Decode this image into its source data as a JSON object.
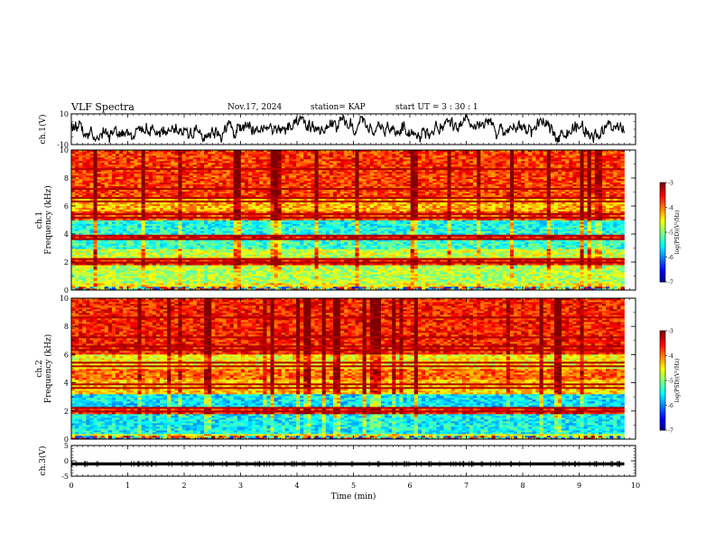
{
  "header": {
    "title": "VLF Spectra",
    "date": "Nov.17, 2024",
    "station": "station= KAP",
    "start": "start  UT  =   3 : 30 : 1"
  },
  "chart_data": [
    {
      "type": "line",
      "panel": "waveform-ch1",
      "ylabel": "ch.1(V)",
      "ylim": [
        -10,
        10
      ],
      "yticks": [
        10,
        -10
      ],
      "x_range_min": [
        0,
        9.8
      ],
      "description_values": "noisy waveform fluctuating roughly between -8 and +8 V",
      "sample_envelope": [
        2,
        -3,
        5,
        -2,
        4,
        -5,
        3,
        -1,
        6,
        -4,
        2,
        0,
        -3,
        4,
        -6,
        3,
        1,
        -2,
        5,
        -3
      ]
    },
    {
      "type": "heatmap",
      "panel": "spectrogram-ch1",
      "ylabel": "ch.1\nFrequency (kHz)",
      "ylim": [
        0,
        10
      ],
      "yticks": [
        0,
        2,
        4,
        6,
        8,
        10
      ],
      "xlim": [
        0,
        10
      ],
      "data_extent_min": [
        0,
        9.8
      ],
      "colorbar": {
        "label": "log(PSD)(V²/Hz)",
        "range": [
          -7,
          -3
        ],
        "ticks": [
          -3,
          -4,
          -5,
          -6,
          -7
        ]
      },
      "band_profile": [
        {
          "f": [
            0,
            0.5
          ],
          "level": -4.5
        },
        {
          "f": [
            0.5,
            1.8
          ],
          "level": -4.8
        },
        {
          "f": [
            1.8,
            2.2
          ],
          "level": -3.6
        },
        {
          "f": [
            2.2,
            3.0
          ],
          "level": -4.7
        },
        {
          "f": [
            3.0,
            3.6
          ],
          "level": -5.3
        },
        {
          "f": [
            3.6,
            4.0
          ],
          "level": -3.5
        },
        {
          "f": [
            4.0,
            5.0
          ],
          "level": -5.4
        },
        {
          "f": [
            5.0,
            5.6
          ],
          "level": -3.8
        },
        {
          "f": [
            5.6,
            6.5
          ],
          "level": -4.2
        },
        {
          "f": [
            6.5,
            10.0
          ],
          "level": -3.7
        }
      ]
    },
    {
      "type": "heatmap",
      "panel": "spectrogram-ch2",
      "ylabel": "ch.2\nFrequency (kHz)",
      "ylim": [
        0,
        10
      ],
      "yticks": [
        0,
        2,
        4,
        6,
        8,
        10
      ],
      "xlim": [
        0,
        10
      ],
      "data_extent_min": [
        0,
        9.8
      ],
      "colorbar": {
        "label": "log(PSD)(V²/Hz)",
        "range": [
          -7,
          -3
        ],
        "ticks": [
          -3,
          -4,
          -5,
          -6,
          -7
        ]
      },
      "band_profile": [
        {
          "f": [
            0,
            0.4
          ],
          "level": -4.6
        },
        {
          "f": [
            0.4,
            1.8
          ],
          "level": -5.5
        },
        {
          "f": [
            1.8,
            2.2
          ],
          "level": -3.6
        },
        {
          "f": [
            2.2,
            3.2
          ],
          "level": -5.6
        },
        {
          "f": [
            3.2,
            4.2
          ],
          "level": -4.3
        },
        {
          "f": [
            4.2,
            5.0
          ],
          "level": -3.9
        },
        {
          "f": [
            5.0,
            6.0
          ],
          "level": -4.5
        },
        {
          "f": [
            6.0,
            10.0
          ],
          "level": -3.6
        }
      ]
    },
    {
      "type": "line",
      "panel": "waveform-ch3",
      "ylabel": "ch.3(V)",
      "ylim": [
        -5,
        5
      ],
      "yticks": [
        5,
        0,
        -5
      ],
      "x_range_min": [
        0,
        9.8
      ],
      "level_band": [
        -1.5,
        -0.5
      ]
    }
  ],
  "xaxis": {
    "label": "Time (min)",
    "ticks": [
      0,
      1,
      2,
      3,
      4,
      5,
      6,
      7,
      8,
      9,
      10
    ],
    "xlim": [
      0,
      10
    ]
  },
  "colorbar_ticks_text": [
    "-3",
    "-4",
    "-5",
    "-6",
    "-7"
  ]
}
